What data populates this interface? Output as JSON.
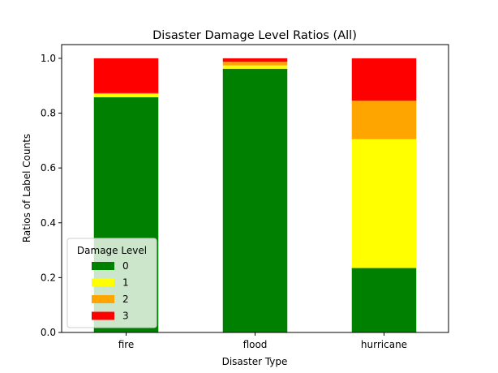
{
  "chart_data": {
    "type": "bar",
    "stacked": true,
    "title": "Disaster Damage Level Ratios (All)",
    "xlabel": "Disaster Type",
    "ylabel": "Ratios of Label Counts",
    "categories": [
      "fire",
      "flood",
      "hurricane"
    ],
    "ylim": [
      0,
      1.05
    ],
    "yticks": [
      "0.0",
      "0.2",
      "0.4",
      "0.6",
      "0.8",
      "1.0"
    ],
    "grid": false,
    "legend": {
      "title": "Damage Level",
      "placement": "lower-left"
    },
    "series": [
      {
        "name": "0",
        "color": "#008000",
        "values": [
          0.858,
          0.962,
          0.235
        ]
      },
      {
        "name": "1",
        "color": "#ffff00",
        "values": [
          0.012,
          0.012,
          0.47
        ]
      },
      {
        "name": "2",
        "color": "#ffa500",
        "values": [
          0.003,
          0.013,
          0.14
        ]
      },
      {
        "name": "3",
        "color": "#ff0000",
        "values": [
          0.127,
          0.013,
          0.155
        ]
      }
    ]
  }
}
